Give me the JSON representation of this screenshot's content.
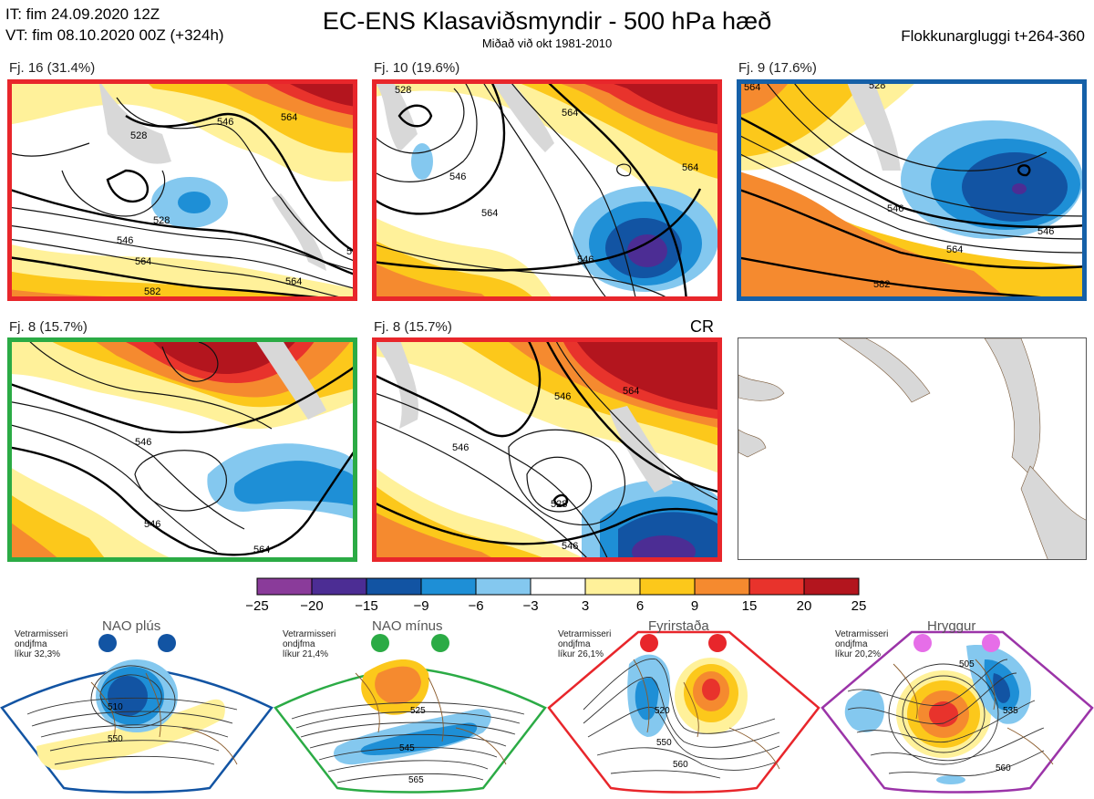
{
  "header": {
    "it_line": "IT: fim 24.09.2020 12Z",
    "vt_line": "VT: fim 08.10.2020 00Z  (+324h)",
    "title": "EC-ENS Klasaviðsmyndir - 500 hPa hæð",
    "subtitle": "Miðað við okt 1981-2010",
    "window": "Flokkunargluggi t+264-360"
  },
  "panels": [
    {
      "label": "Fj. 16 (31.4%)",
      "border": "#e8262b",
      "contours": [
        "528",
        "546",
        "564",
        "528",
        "546",
        "564",
        "582",
        "564",
        "5"
      ]
    },
    {
      "label": "Fj. 10 (19.6%)",
      "border": "#e8262b",
      "contours": [
        "528",
        "546",
        "564",
        "546",
        "564",
        "564"
      ]
    },
    {
      "label": "Fj. 9 (17.6%)",
      "border": "#1560a8",
      "contours": [
        "528",
        "546",
        "564",
        "582",
        "546",
        "564"
      ]
    },
    {
      "label": "Fj. 8 (15.7%)",
      "border": "#2bab45",
      "contours": [
        "546",
        "546",
        "564"
      ]
    },
    {
      "label": "Fj. 8 (15.7%)",
      "border": "#e8262b",
      "contours": [
        "546",
        "546",
        "528",
        "546",
        "564"
      ],
      "tag": "CR"
    }
  ],
  "colorbar": {
    "ticks": [
      "−25",
      "−20",
      "−15",
      "−9",
      "−6",
      "−3",
      "3",
      "6",
      "9",
      "15",
      "20",
      "25"
    ],
    "colors": [
      "#8a3b9a",
      "#4c2d94",
      "#1254a3",
      "#1e8fd6",
      "#84c8ef",
      "#ffffff",
      "#fff19a",
      "#fcc81b",
      "#f58a2f",
      "#e8332c",
      "#b3151e"
    ]
  },
  "regimes": [
    {
      "name": "NAO plús",
      "info1": "Vetrarmisseri",
      "info2": "ondjfma",
      "info3": "líkur 32,3%",
      "color": "#1254a3",
      "contours": [
        "510",
        "550"
      ]
    },
    {
      "name": "NAO mínus",
      "info1": "Vetrarmisseri",
      "info2": "ondjfma",
      "info3": "líkur 21,4%",
      "color": "#2bab45",
      "contours": [
        "525",
        "545",
        "565"
      ]
    },
    {
      "name": "Fyrirstaða",
      "info1": "Vetrarmisseri",
      "info2": "ondjfma",
      "info3": "líkur 26,1%",
      "color": "#e8262b",
      "contours": [
        "520",
        "550",
        "560"
      ]
    },
    {
      "name": "Hryggur",
      "info1": "Vetrarmisseri",
      "info2": "ondjfma",
      "info3": "líkur 20,2%",
      "color": "#e66ee8",
      "contours": [
        "505",
        "535",
        "560"
      ]
    }
  ]
}
